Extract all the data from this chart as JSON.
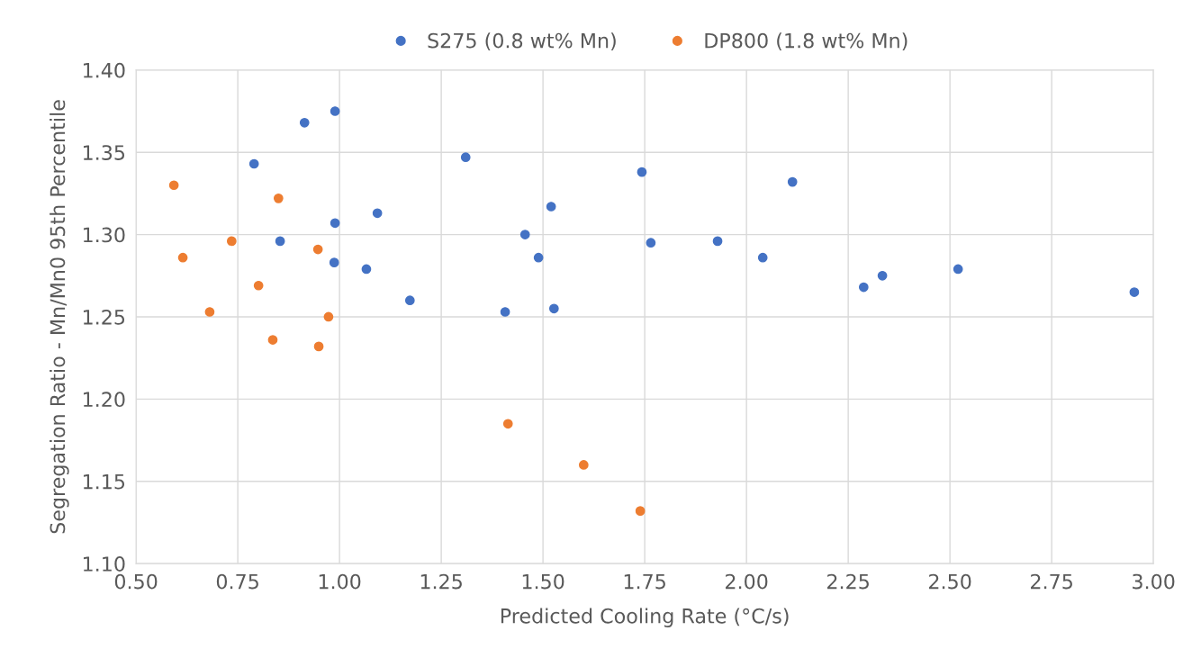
{
  "chart_data": {
    "type": "scatter",
    "xlabel": "Predicted Cooling Rate (°C/s)",
    "ylabel": "Segregation Ratio - Mn/Mn0 95th Percentile",
    "xlim": [
      0.5,
      3.0
    ],
    "xticks": [
      {
        "value": 0.5,
        "label": "0.50"
      },
      {
        "value": 0.75,
        "label": "0.75"
      },
      {
        "value": 1.0,
        "label": "1.00"
      },
      {
        "value": 1.25,
        "label": "1.25"
      },
      {
        "value": 1.5,
        "label": "1.50"
      },
      {
        "value": 1.75,
        "label": "1.75"
      },
      {
        "value": 2.0,
        "label": "2.00"
      },
      {
        "value": 2.25,
        "label": "2.25"
      },
      {
        "value": 2.5,
        "label": "2.50"
      },
      {
        "value": 2.75,
        "label": "2.75"
      },
      {
        "value": 3.0,
        "label": "3.00"
      }
    ],
    "ylim": [
      1.1,
      1.4
    ],
    "yticks": [
      {
        "value": 1.1,
        "label": "1.10"
      },
      {
        "value": 1.15,
        "label": "1.15"
      },
      {
        "value": 1.2,
        "label": "1.20"
      },
      {
        "value": 1.25,
        "label": "1.25"
      },
      {
        "value": 1.3,
        "label": "1.30"
      },
      {
        "value": 1.35,
        "label": "1.35"
      },
      {
        "value": 1.4,
        "label": "1.40"
      }
    ],
    "grid": true,
    "legend": "top",
    "marker": "circle",
    "series": [
      {
        "name": "S275 (0.8 wt% Mn)",
        "color": "#4472c4",
        "x": [
          0.914,
          0.989,
          0.79,
          1.31,
          1.743,
          2.113,
          1.52,
          1.093,
          0.989,
          0.854,
          1.456,
          1.765,
          1.929,
          0.987,
          1.489,
          1.066,
          2.04,
          1.173,
          1.407,
          1.527,
          2.288,
          2.334,
          2.52,
          2.953
        ],
        "values": [
          1.368,
          1.375,
          1.343,
          1.347,
          1.338,
          1.332,
          1.317,
          1.313,
          1.307,
          1.296,
          1.3,
          1.295,
          1.296,
          1.283,
          1.286,
          1.279,
          1.286,
          1.26,
          1.253,
          1.255,
          1.268,
          1.275,
          1.279,
          1.265
        ]
      },
      {
        "name": "DP800 (1.8 wt% Mn)",
        "color": "#ed7d31",
        "x": [
          0.593,
          0.85,
          0.735,
          0.947,
          0.615,
          0.801,
          0.681,
          0.973,
          0.836,
          0.949,
          1.414,
          1.6,
          1.739
        ],
        "values": [
          1.33,
          1.322,
          1.296,
          1.291,
          1.286,
          1.269,
          1.253,
          1.25,
          1.236,
          1.232,
          1.185,
          1.16,
          1.132
        ]
      }
    ]
  }
}
